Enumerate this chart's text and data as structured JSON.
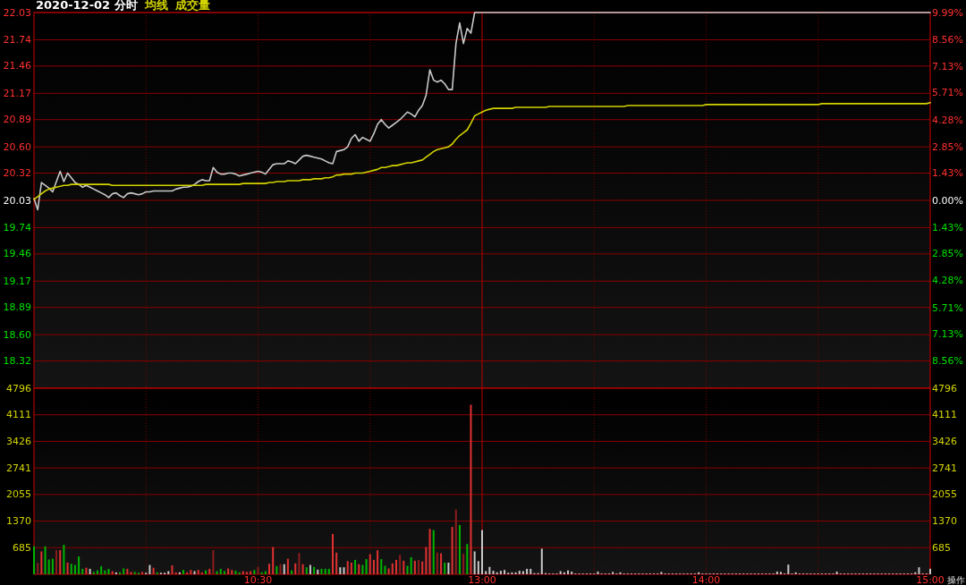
{
  "chart_data": [
    {
      "type": "line",
      "title": "2020-12-02 分时",
      "categories": [
        null,
        null,
        null,
        null,
        null,
        null,
        null,
        null,
        null,
        null,
        null,
        null,
        null,
        null,
        null,
        null,
        null,
        null,
        null,
        null,
        null,
        null,
        null,
        null,
        null,
        null,
        null,
        null,
        null,
        null,
        null,
        null,
        null,
        null,
        null,
        null,
        null,
        null,
        null,
        null,
        null,
        null,
        null,
        null,
        null,
        null,
        null,
        null,
        null,
        null,
        null,
        null,
        null,
        null,
        null,
        null,
        null,
        null,
        null,
        null,
        null,
        null,
        null,
        null,
        null,
        null,
        null,
        null,
        null,
        null,
        null,
        null,
        null,
        null,
        null,
        null,
        null,
        null,
        null,
        null,
        null,
        null,
        null,
        null,
        null,
        null,
        null,
        null,
        null,
        null,
        null,
        null,
        null,
        null,
        null,
        null,
        null,
        null,
        null,
        null,
        null,
        null,
        null,
        null,
        null,
        null,
        null,
        null,
        null,
        null,
        null,
        null,
        null,
        null,
        null,
        null,
        null,
        null,
        null,
        null,
        null,
        null,
        null,
        null,
        null,
        null,
        null,
        null,
        null,
        null,
        null,
        null,
        null,
        null,
        null,
        null,
        null,
        null,
        null,
        null,
        null,
        null,
        null,
        null,
        null,
        null,
        null,
        null,
        null,
        null,
        null,
        null,
        null,
        null,
        null,
        null,
        null,
        null,
        null,
        null,
        null,
        null,
        null,
        null,
        null,
        null,
        null,
        null,
        null,
        null,
        null,
        null,
        null,
        null,
        null,
        null,
        null,
        null,
        null,
        null,
        null,
        null,
        null,
        null,
        null,
        null,
        null,
        null,
        null,
        null,
        null,
        null,
        null,
        null,
        null,
        null,
        null,
        null,
        null,
        null,
        null,
        null,
        null,
        null,
        null,
        null,
        null,
        null,
        null,
        null,
        null,
        null,
        null,
        null,
        null,
        null,
        null,
        null,
        null,
        null,
        null,
        null,
        null,
        null,
        null,
        null,
        null,
        null,
        null,
        null,
        null,
        null,
        null,
        null,
        null,
        null,
        null,
        null,
        null,
        null,
        null
      ],
      "ylim": [
        18.03,
        22.03
      ],
      "yticks": [
        22.03,
        21.74,
        21.46,
        21.17,
        20.89,
        {
          "value": 20.6,
          "label": "20.60"
        },
        20.32,
        20.03,
        19.74,
        19.46,
        19.17,
        18.89,
        {
          "value": 18.6,
          "label": "18.60"
        },
        18.32
      ],
      "y2lim": [
        -9.99,
        9.99
      ],
      "y2ticks": [
        {
          "value": 9.99,
          "label": "9.99%"
        },
        {
          "value": 8.56,
          "label": "8.56%"
        },
        {
          "value": 7.13,
          "label": "7.13%"
        },
        {
          "value": 5.71,
          "label": "5.71%"
        },
        {
          "value": 4.28,
          "label": "4.28%"
        },
        {
          "value": 2.85,
          "label": "2.85%"
        },
        {
          "value": 1.43,
          "label": "1.43%"
        },
        {
          "value": 0,
          "label": "0.00%"
        },
        {
          "value": -1.43,
          "label": "1.43%"
        },
        {
          "value": -2.85,
          "label": "2.85%"
        },
        {
          "value": -4.28,
          "label": "4.28%"
        },
        {
          "value": -5.71,
          "label": "5.71%"
        },
        {
          "value": -7.13,
          "label": "7.13%"
        },
        {
          "value": -8.56,
          "label": "8.56%"
        }
      ],
      "tick_labels": "y",
      "grid": true,
      "annotations": [
        "成交量"
      ],
      "series": [
        {
          "color": "#c8c8c8",
          "values": [
            20.05,
            19.93,
            20.22,
            20.19,
            20.16,
            20.12,
            20.23,
            20.34,
            20.23,
            20.32,
            20.27,
            20.22,
            20.2,
            20.17,
            20.19,
            20.17,
            20.15,
            20.13,
            20.11,
            20.09,
            20.06,
            20.1,
            20.11,
            20.08,
            20.06,
            20.1,
            20.11,
            20.1,
            20.09,
            20.1,
            20.12,
            20.12,
            20.13,
            20.13,
            20.13,
            20.13,
            20.13,
            20.13,
            20.15,
            20.16,
            20.17,
            20.17,
            20.18,
            20.2,
            20.23,
            20.25,
            20.24,
            20.24,
            20.38,
            20.33,
            20.31,
            20.31,
            20.32,
            20.32,
            20.31,
            20.29,
            20.3,
            20.31,
            20.32,
            20.33,
            20.34,
            20.33,
            20.31,
            20.36,
            20.41,
            20.42,
            20.42,
            20.42,
            20.45,
            20.44,
            20.42,
            20.46,
            20.5,
            20.51,
            20.5,
            20.49,
            20.48,
            20.47,
            20.45,
            20.43,
            20.42,
            20.55,
            20.56,
            20.57,
            20.6,
            20.69,
            20.73,
            20.66,
            20.7,
            20.68,
            20.66,
            20.74,
            20.84,
            20.89,
            20.84,
            20.8,
            20.83,
            20.86,
            20.89,
            20.93,
            20.97,
            20.95,
            20.92,
            20.99,
            21.04,
            21.15,
            21.42,
            21.31,
            21.29,
            21.31,
            21.27,
            21.21,
            21.21,
            21.7,
            21.92,
            21.7,
            21.86,
            21.81,
            22.03,
            22.03,
            22.03,
            22.03,
            22.03,
            22.03,
            22.03,
            22.03,
            22.03,
            22.03,
            22.03,
            22.03,
            22.03,
            22.03,
            22.03,
            22.03,
            22.03,
            22.03,
            22.03,
            22.03,
            22.03,
            22.03,
            22.03,
            22.03,
            22.03,
            22.03,
            22.03,
            22.03,
            22.03,
            22.03,
            22.03,
            22.03,
            22.03,
            22.03,
            22.03,
            22.03,
            22.03,
            22.03,
            22.03,
            22.03,
            22.03,
            22.03,
            22.03,
            22.03,
            22.03,
            22.03,
            22.03,
            22.03,
            22.03,
            22.03,
            22.03,
            22.03,
            22.03,
            22.03,
            22.03,
            22.03,
            22.03,
            22.03,
            22.03,
            22.03,
            22.03,
            22.03,
            22.03,
            22.03,
            22.03,
            22.03,
            22.03,
            22.03,
            22.03,
            22.03,
            22.03,
            22.03,
            22.03,
            22.03,
            22.03,
            22.03,
            22.03,
            22.03,
            22.03,
            22.03,
            22.03,
            22.03,
            22.03,
            22.03,
            22.03,
            22.03,
            22.03,
            22.03,
            22.03,
            22.03,
            22.03,
            22.03,
            22.03,
            22.03,
            22.03,
            22.03,
            22.03,
            22.03,
            22.03,
            22.03,
            22.03,
            22.03,
            22.03,
            22.03,
            22.03,
            22.03,
            22.03,
            22.03,
            22.03,
            22.03,
            22.03,
            22.03,
            22.03,
            22.03,
            22.03,
            22.03,
            22.03,
            22.03,
            22.03,
            22.03,
            22.03,
            22.03,
            22.03
          ]
        },
        {
          "name": "均线",
          "color": "#d2d200",
          "values": [
            20.04,
            20.07,
            20.1,
            20.13,
            20.15,
            20.16,
            20.17,
            20.18,
            20.19,
            20.19,
            20.2,
            20.2,
            20.2,
            20.2,
            20.2,
            20.2,
            20.2,
            20.2,
            20.2,
            20.2,
            20.2,
            20.19,
            20.19,
            20.19,
            20.19,
            20.19,
            20.19,
            20.19,
            20.19,
            20.19,
            20.19,
            20.19,
            20.19,
            20.19,
            20.19,
            20.19,
            20.19,
            20.19,
            20.19,
            20.19,
            20.19,
            20.19,
            20.19,
            20.19,
            20.19,
            20.19,
            20.2,
            20.2,
            20.2,
            20.2,
            20.2,
            20.2,
            20.2,
            20.2,
            20.2,
            20.2,
            20.21,
            20.21,
            20.21,
            20.21,
            20.21,
            20.21,
            20.21,
            20.22,
            20.22,
            20.23,
            20.23,
            20.23,
            20.24,
            20.24,
            20.24,
            20.24,
            20.25,
            20.25,
            20.25,
            20.26,
            20.26,
            20.26,
            20.27,
            20.27,
            20.28,
            20.3,
            20.3,
            20.31,
            20.31,
            20.31,
            20.32,
            20.32,
            20.32,
            20.33,
            20.34,
            20.35,
            20.36,
            20.38,
            20.38,
            20.39,
            20.4,
            20.4,
            20.41,
            20.42,
            20.43,
            20.43,
            20.44,
            20.45,
            20.46,
            20.49,
            20.52,
            20.55,
            20.57,
            20.58,
            20.59,
            20.6,
            20.63,
            20.68,
            20.72,
            20.75,
            20.78,
            20.85,
            20.93,
            20.95,
            20.97,
            20.99,
            21.0,
            21.01,
            21.01,
            21.01,
            21.01,
            21.01,
            21.01,
            21.02,
            21.02,
            21.02,
            21.02,
            21.02,
            21.02,
            21.02,
            21.02,
            21.02,
            21.03,
            21.03,
            21.03,
            21.03,
            21.03,
            21.03,
            21.03,
            21.03,
            21.03,
            21.03,
            21.03,
            21.03,
            21.03,
            21.03,
            21.03,
            21.03,
            21.03,
            21.03,
            21.03,
            21.03,
            21.03,
            21.04,
            21.04,
            21.04,
            21.04,
            21.04,
            21.04,
            21.04,
            21.04,
            21.04,
            21.04,
            21.04,
            21.04,
            21.04,
            21.04,
            21.04,
            21.04,
            21.04,
            21.04,
            21.04,
            21.04,
            21.04,
            21.05,
            21.05,
            21.05,
            21.05,
            21.05,
            21.05,
            21.05,
            21.05,
            21.05,
            21.05,
            21.05,
            21.05,
            21.05,
            21.05,
            21.05,
            21.05,
            21.05,
            21.05,
            21.05,
            21.05,
            21.05,
            21.05,
            21.05,
            21.05,
            21.05,
            21.05,
            21.05,
            21.05,
            21.05,
            21.05,
            21.05,
            21.06,
            21.06,
            21.06,
            21.06,
            21.06,
            21.06,
            21.06,
            21.06,
            21.06,
            21.06,
            21.06,
            21.06,
            21.06,
            21.06,
            21.06,
            21.06,
            21.06,
            21.06,
            21.06,
            21.06,
            21.06,
            21.06,
            21.06,
            21.06,
            21.06,
            21.06,
            21.06,
            21.06,
            21.06,
            21.07
          ]
        }
      ]
    },
    {
      "type": "bar",
      "ylim": [
        0,
        4796
      ],
      "yticks": [
        685,
        1370,
        2055,
        2741,
        3426,
        4111,
        4796
      ],
      "y2lim": [
        0,
        4796
      ],
      "y2ticks": [
        685,
        1370,
        2055,
        2741,
        3426,
        4111,
        4796
      ],
      "grid": true,
      "annotations": [
        "操作"
      ],
      "categories": [
        null,
        null,
        null,
        null,
        null,
        null,
        null,
        null,
        null,
        null,
        null,
        null,
        null,
        null,
        null,
        null,
        null,
        null,
        null,
        null,
        null,
        null,
        null,
        null,
        null,
        null,
        null,
        null,
        null,
        null,
        null,
        null,
        null,
        null,
        null,
        null,
        null,
        null,
        null,
        null,
        null,
        null,
        null,
        null,
        null,
        null,
        null,
        null,
        null,
        null,
        null,
        null,
        null,
        null,
        null,
        null,
        null,
        null,
        null,
        null,
        "10:30",
        null,
        null,
        null,
        null,
        null,
        null,
        null,
        null,
        null,
        null,
        null,
        null,
        null,
        null,
        null,
        null,
        null,
        null,
        null,
        null,
        null,
        null,
        null,
        null,
        null,
        null,
        null,
        null,
        null,
        null,
        null,
        null,
        null,
        null,
        null,
        null,
        null,
        null,
        null,
        null,
        null,
        null,
        null,
        null,
        null,
        null,
        null,
        null,
        null,
        null,
        null,
        null,
        null,
        null,
        null,
        null,
        null,
        null,
        null,
        "13:00",
        null,
        null,
        null,
        null,
        null,
        null,
        null,
        null,
        null,
        null,
        null,
        null,
        null,
        null,
        null,
        null,
        null,
        null,
        null,
        null,
        null,
        null,
        null,
        null,
        null,
        null,
        null,
        null,
        null,
        null,
        null,
        null,
        null,
        null,
        null,
        null,
        null,
        null,
        null,
        null,
        null,
        null,
        null,
        null,
        null,
        null,
        null,
        null,
        null,
        null,
        null,
        null,
        null,
        null,
        null,
        null,
        null,
        null,
        null,
        "14:00",
        null,
        null,
        null,
        null,
        null,
        null,
        null,
        null,
        null,
        null,
        null,
        null,
        null,
        null,
        null,
        null,
        null,
        null,
        null,
        null,
        null,
        null,
        null,
        null,
        null,
        null,
        null,
        null,
        null,
        null,
        null,
        null,
        null,
        null,
        null,
        null,
        null,
        null,
        null,
        null,
        null,
        null,
        null,
        null,
        null,
        null,
        null,
        null,
        null,
        null,
        null,
        null,
        null,
        null,
        null,
        null,
        null,
        null,
        null,
        "15:00"
      ],
      "values": [
        720,
        290,
        590,
        720,
        380,
        400,
        620,
        620,
        760,
        300,
        270,
        240,
        460,
        140,
        170,
        140,
        60,
        100,
        210,
        100,
        140,
        80,
        50,
        50,
        150,
        140,
        60,
        60,
        40,
        60,
        40,
        240,
        170,
        50,
        40,
        40,
        80,
        230,
        50,
        50,
        110,
        50,
        110,
        80,
        110,
        50,
        100,
        140,
        620,
        80,
        140,
        80,
        150,
        110,
        90,
        50,
        80,
        60,
        80,
        110,
        190,
        50,
        80,
        270,
        700,
        210,
        260,
        260,
        400,
        100,
        280,
        550,
        260,
        180,
        240,
        190,
        120,
        140,
        140,
        140,
        1040,
        560,
        180,
        180,
        340,
        300,
        370,
        260,
        240,
        390,
        520,
        370,
        620,
        390,
        220,
        150,
        280,
        370,
        500,
        350,
        220,
        440,
        350,
        370,
        330,
        700,
        1170,
        1140,
        560,
        540,
        300,
        300,
        1220,
        1670,
        1270,
        530,
        780,
        4370,
        590,
        340,
        1140,
        80,
        190,
        90,
        50,
        90,
        110,
        40,
        50,
        50,
        90,
        80,
        140,
        140,
        30,
        30,
        660,
        30,
        20,
        20,
        20,
        80,
        50,
        100,
        70,
        20,
        20,
        20,
        20,
        20,
        20,
        70,
        20,
        20,
        20,
        60,
        20,
        50,
        20,
        20,
        20,
        20,
        20,
        20,
        20,
        20,
        20,
        20,
        60,
        20,
        20,
        20,
        20,
        20,
        20,
        20,
        20,
        20,
        50,
        20,
        20,
        20,
        20,
        20,
        20,
        20,
        20,
        20,
        20,
        20,
        20,
        20,
        20,
        20,
        20,
        20,
        20,
        20,
        20,
        70,
        60,
        20,
        250,
        20,
        50,
        20,
        20,
        20,
        20,
        20,
        20,
        20,
        20,
        20,
        20,
        70,
        20,
        20,
        20,
        20,
        20,
        20,
        20,
        20,
        20,
        20,
        20,
        20,
        20,
        20,
        20,
        20,
        20,
        20,
        20,
        20,
        50,
        180,
        20,
        20,
        140
      ],
      "colors": [
        "#00b400",
        "#8c1c1c",
        "#e03030",
        "#00b400",
        "#00b400",
        "#00b400",
        "#8c1c1c",
        "#e03030",
        "#00b400",
        "#e03030",
        "#00b400",
        "#00b400",
        "#00b400",
        "#00b400",
        "#e03030",
        "#c8c8c8",
        "#00b400",
        "#00b400",
        "#00b400",
        "#00b400",
        "#00b400",
        "#e03030",
        "#c8c8c8",
        "#00b400",
        "#00b400",
        "#e03030",
        "#e03030",
        "#00b400",
        "#00b400",
        "#e03030",
        "#c8c8c8",
        "#c8c8c8",
        "#e03030",
        "#00b400",
        "#c8c8c8",
        "#c8c8c8",
        "#c8c8c8",
        "#e03030",
        "#e03030",
        "#c8c8c8",
        "#00b400",
        "#e03030",
        "#e03030",
        "#c8c8c8",
        "#e03030",
        "#e03030",
        "#00b400",
        "#e03030",
        "#8c1c1c",
        "#00b400",
        "#00b400",
        "#00b400",
        "#e03030",
        "#e03030",
        "#00b400",
        "#00b400",
        "#e03030",
        "#e03030",
        "#e03030",
        "#00b400",
        "#8c1c1c",
        "#00b400",
        "#00b400",
        "#e03030",
        "#e03030",
        "#00b400",
        "#8c1c1c",
        "#c8c8c8",
        "#e03030",
        "#00b400",
        "#e03030",
        "#8c1c1c",
        "#e03030",
        "#00b400",
        "#c8c8c8",
        "#00b400",
        "#c8c8c8",
        "#00b400",
        "#00b400",
        "#00b400",
        "#e03030",
        "#e03030",
        "#c8c8c8",
        "#c8c8c8",
        "#e03030",
        "#e03030",
        "#00b400",
        "#e03030",
        "#00b400",
        "#00b400",
        "#e03030",
        "#e03030",
        "#e03030",
        "#00b400",
        "#00b400",
        "#e03030",
        "#e03030",
        "#e03030",
        "#8c1c1c",
        "#e03030",
        "#00b400",
        "#00b400",
        "#e03030",
        "#8c1c1c",
        "#e03030",
        "#e03030",
        "#e03030",
        "#00b400",
        "#8c1c1c",
        "#e03030",
        "#00b400",
        "#c8c8c8",
        "#e03030",
        "#8c1c1c",
        "#00b400",
        "#8c1c1c",
        "#00b400",
        "#e03030",
        "#c8c8c8",
        "#c8c8c8",
        "#c8c8c8",
        "#c8c8c8",
        "#c8c8c8",
        "#c8c8c8",
        "#c8c8c8",
        "#c8c8c8",
        "#c8c8c8",
        "#c8c8c8",
        "#c8c8c8",
        "#c8c8c8",
        "#c8c8c8",
        "#c8c8c8",
        "#c8c8c8",
        "#c8c8c8",
        "#c8c8c8",
        "#c8c8c8",
        "#c8c8c8",
        "#c8c8c8",
        "#c8c8c8",
        "#c8c8c8",
        "#c8c8c8",
        "#c8c8c8",
        "#c8c8c8",
        "#c8c8c8",
        "#c8c8c8",
        "#c8c8c8",
        "#c8c8c8",
        "#c8c8c8",
        "#c8c8c8",
        "#c8c8c8",
        "#c8c8c8",
        "#c8c8c8",
        "#c8c8c8",
        "#c8c8c8",
        "#c8c8c8",
        "#c8c8c8",
        "#c8c8c8",
        "#c8c8c8",
        "#c8c8c8",
        "#c8c8c8",
        "#c8c8c8",
        "#c8c8c8",
        "#c8c8c8",
        "#c8c8c8",
        "#c8c8c8",
        "#c8c8c8",
        "#c8c8c8",
        "#c8c8c8",
        "#c8c8c8",
        "#c8c8c8",
        "#c8c8c8",
        "#c8c8c8",
        "#c8c8c8",
        "#c8c8c8",
        "#c8c8c8",
        "#c8c8c8",
        "#c8c8c8",
        "#c8c8c8",
        "#c8c8c8",
        "#c8c8c8",
        "#c8c8c8",
        "#c8c8c8",
        "#c8c8c8",
        "#c8c8c8",
        "#c8c8c8",
        "#c8c8c8",
        "#c8c8c8",
        "#c8c8c8",
        "#c8c8c8",
        "#c8c8c8",
        "#c8c8c8",
        "#c8c8c8",
        "#c8c8c8",
        "#c8c8c8",
        "#c8c8c8",
        "#c8c8c8",
        "#c8c8c8",
        "#c8c8c8",
        "#c8c8c8",
        "#c8c8c8",
        "#c8c8c8",
        "#c8c8c8",
        "#c8c8c8",
        "#c8c8c8",
        "#c8c8c8",
        "#c8c8c8",
        "#c8c8c8",
        "#c8c8c8",
        "#c8c8c8",
        "#c8c8c8",
        "#c8c8c8",
        "#c8c8c8",
        "#c8c8c8",
        "#c8c8c8",
        "#c8c8c8",
        "#c8c8c8",
        "#c8c8c8",
        "#c8c8c8",
        "#c8c8c8",
        "#c8c8c8",
        "#c8c8c8",
        "#c8c8c8",
        "#c8c8c8",
        "#c8c8c8",
        "#c8c8c8",
        "#c8c8c8",
        "#c8c8c8",
        "#c8c8c8",
        "#c8c8c8",
        "#c8c8c8",
        "#c8c8c8",
        "#c8c8c8",
        "#c8c8c8",
        "#c8c8c8",
        "#c8c8c8",
        "#c8c8c8",
        "#c8c8c8",
        "#c8c8c8",
        "#c8c8c8",
        "#c8c8c8",
        "#c8c8c8"
      ]
    }
  ]
}
